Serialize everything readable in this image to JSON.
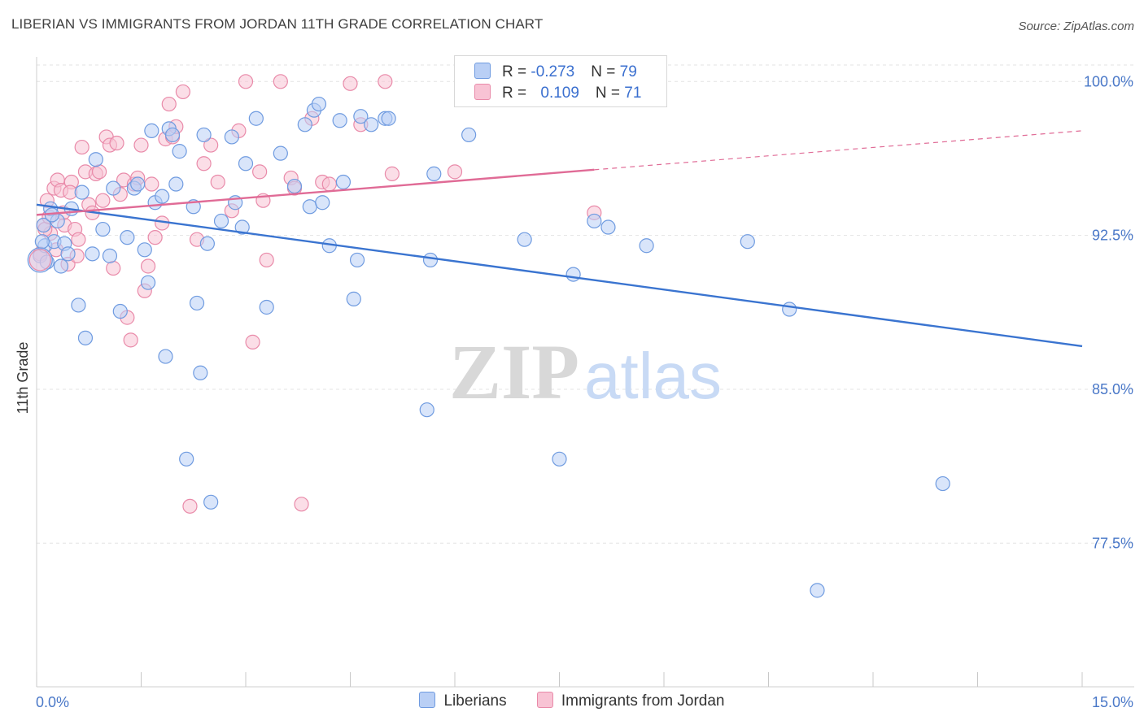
{
  "title": "LIBERIAN VS IMMIGRANTS FROM JORDAN 11TH GRADE CORRELATION CHART",
  "source": "Source: ZipAtlas.com",
  "watermark": {
    "zip": "ZIP",
    "atlas": "atlas"
  },
  "colors": {
    "blue_fill": "#b9cff5",
    "blue_stroke": "#6f9be0",
    "blue_line": "#3a74d0",
    "pink_fill": "#f8c3d4",
    "pink_stroke": "#e98aa9",
    "pink_line": "#e06b96",
    "tick_text": "#4a78c8",
    "grid": "#e3e3e3"
  },
  "legend": {
    "rows": [
      {
        "r_label": "R = ",
        "r_value": "-0.273",
        "n_label": "N = ",
        "n_value": "79"
      },
      {
        "r_label": "R = ",
        "r_value": "0.109",
        "n_label": "N = ",
        "n_value": "71"
      }
    ]
  },
  "chart_data": {
    "type": "scatter",
    "title": "LIBERIAN VS IMMIGRANTS FROM JORDAN 11TH GRADE CORRELATION CHART",
    "xlabel": "",
    "ylabel": "11th Grade",
    "xlim": [
      0,
      15
    ],
    "ylim": [
      70.5,
      101.2
    ],
    "x_tick_labels": [
      "0.0%",
      "15.0%"
    ],
    "y_ticks": [
      77.5,
      85.0,
      92.5,
      100.0
    ],
    "y_tick_labels": [
      "77.5%",
      "85.0%",
      "92.5%",
      "100.0%"
    ],
    "grid": true,
    "legend_position": "bottom",
    "series": [
      {
        "name": "Liberians",
        "color": "#6f9be0",
        "trend": {
          "x0": 0.0,
          "y0": 94.0,
          "x1": 15.0,
          "y1": 87.1,
          "dashed_to": null
        },
        "points": [
          [
            0.05,
            91.5
          ],
          [
            0.1,
            93.0
          ],
          [
            0.12,
            92.0
          ],
          [
            0.2,
            93.8
          ],
          [
            0.25,
            92.2
          ],
          [
            0.3,
            93.2
          ],
          [
            0.35,
            91.0
          ],
          [
            0.4,
            92.1
          ],
          [
            0.45,
            91.6
          ],
          [
            0.5,
            93.8
          ],
          [
            0.6,
            89.1
          ],
          [
            0.65,
            94.6
          ],
          [
            0.7,
            87.5
          ],
          [
            0.8,
            91.6
          ],
          [
            0.85,
            96.2
          ],
          [
            0.95,
            92.8
          ],
          [
            1.05,
            91.5
          ],
          [
            1.1,
            94.8
          ],
          [
            1.2,
            88.8
          ],
          [
            1.3,
            92.4
          ],
          [
            1.4,
            94.8
          ],
          [
            1.45,
            95.0
          ],
          [
            1.55,
            91.8
          ],
          [
            1.6,
            90.2
          ],
          [
            1.65,
            97.6
          ],
          [
            1.7,
            94.1
          ],
          [
            1.8,
            94.4
          ],
          [
            1.85,
            86.6
          ],
          [
            1.9,
            97.7
          ],
          [
            1.95,
            97.4
          ],
          [
            2.0,
            95.0
          ],
          [
            2.05,
            96.6
          ],
          [
            2.15,
            81.6
          ],
          [
            2.25,
            93.9
          ],
          [
            2.3,
            89.2
          ],
          [
            2.35,
            85.8
          ],
          [
            2.4,
            97.4
          ],
          [
            2.45,
            92.1
          ],
          [
            2.5,
            79.5
          ],
          [
            2.65,
            93.2
          ],
          [
            2.8,
            97.3
          ],
          [
            2.85,
            94.1
          ],
          [
            2.95,
            92.9
          ],
          [
            3.0,
            96.0
          ],
          [
            3.15,
            98.2
          ],
          [
            3.3,
            89.0
          ],
          [
            3.5,
            96.5
          ],
          [
            3.7,
            94.9
          ],
          [
            3.85,
            97.9
          ],
          [
            3.92,
            93.9
          ],
          [
            3.98,
            98.6
          ],
          [
            4.1,
            94.1
          ],
          [
            4.05,
            98.9
          ],
          [
            4.2,
            92.0
          ],
          [
            4.35,
            98.1
          ],
          [
            4.4,
            95.1
          ],
          [
            4.55,
            89.4
          ],
          [
            4.6,
            91.3
          ],
          [
            4.65,
            98.3
          ],
          [
            4.8,
            97.9
          ],
          [
            5.0,
            98.2
          ],
          [
            5.05,
            98.2
          ],
          [
            5.6,
            84.0
          ],
          [
            5.65,
            91.3
          ],
          [
            5.7,
            95.5
          ],
          [
            6.2,
            97.4
          ],
          [
            7.0,
            92.3
          ],
          [
            7.5,
            81.6
          ],
          [
            7.7,
            90.6
          ],
          [
            8.0,
            93.2
          ],
          [
            8.2,
            92.9
          ],
          [
            8.75,
            92.0
          ],
          [
            10.2,
            92.2
          ],
          [
            10.8,
            88.9
          ],
          [
            11.2,
            75.2
          ],
          [
            13.0,
            80.4
          ],
          [
            0.08,
            92.2
          ],
          [
            0.15,
            91.2
          ],
          [
            0.22,
            93.5
          ]
        ]
      },
      {
        "name": "Immigrants from Jordan",
        "color": "#e98aa9",
        "trend": {
          "x0": 0.0,
          "y0": 93.5,
          "x1": 8.0,
          "y1": 95.7,
          "dashed_to": {
            "x": 15.0,
            "y": 97.6
          }
        },
        "points": [
          [
            0.05,
            91.6
          ],
          [
            0.1,
            93.0
          ],
          [
            0.15,
            94.2
          ],
          [
            0.2,
            92.6
          ],
          [
            0.25,
            94.8
          ],
          [
            0.3,
            95.2
          ],
          [
            0.35,
            94.7
          ],
          [
            0.4,
            93.0
          ],
          [
            0.45,
            91.1
          ],
          [
            0.5,
            95.1
          ],
          [
            0.55,
            92.8
          ],
          [
            0.6,
            92.3
          ],
          [
            0.65,
            96.8
          ],
          [
            0.7,
            95.6
          ],
          [
            0.75,
            94.0
          ],
          [
            0.8,
            93.6
          ],
          [
            0.85,
            95.5
          ],
          [
            0.9,
            95.6
          ],
          [
            0.95,
            94.2
          ],
          [
            1.0,
            97.3
          ],
          [
            1.05,
            96.9
          ],
          [
            1.1,
            90.9
          ],
          [
            1.15,
            97.0
          ],
          [
            1.2,
            94.5
          ],
          [
            1.25,
            95.2
          ],
          [
            1.3,
            88.5
          ],
          [
            1.35,
            87.4
          ],
          [
            1.4,
            95.0
          ],
          [
            1.45,
            95.3
          ],
          [
            1.5,
            96.9
          ],
          [
            1.55,
            89.8
          ],
          [
            1.6,
            91.0
          ],
          [
            1.65,
            95.0
          ],
          [
            1.7,
            92.4
          ],
          [
            1.8,
            93.1
          ],
          [
            1.85,
            97.2
          ],
          [
            1.9,
            98.9
          ],
          [
            1.95,
            97.3
          ],
          [
            2.0,
            97.8
          ],
          [
            2.1,
            99.5
          ],
          [
            2.2,
            79.3
          ],
          [
            2.3,
            92.3
          ],
          [
            2.4,
            96.0
          ],
          [
            2.5,
            96.9
          ],
          [
            2.6,
            95.1
          ],
          [
            2.8,
            93.7
          ],
          [
            2.9,
            97.6
          ],
          [
            3.0,
            100.0
          ],
          [
            3.1,
            87.3
          ],
          [
            3.2,
            95.6
          ],
          [
            3.25,
            94.2
          ],
          [
            3.3,
            91.3
          ],
          [
            3.5,
            100.0
          ],
          [
            3.65,
            95.3
          ],
          [
            3.7,
            94.8
          ],
          [
            3.8,
            79.4
          ],
          [
            3.95,
            98.2
          ],
          [
            4.1,
            95.1
          ],
          [
            4.2,
            95.0
          ],
          [
            4.5,
            99.9
          ],
          [
            4.65,
            97.9
          ],
          [
            5.0,
            100.0
          ],
          [
            5.1,
            95.5
          ],
          [
            6.0,
            95.6
          ],
          [
            8.0,
            93.6
          ],
          [
            0.12,
            92.8
          ],
          [
            0.18,
            93.4
          ],
          [
            0.28,
            91.8
          ],
          [
            0.38,
            93.6
          ],
          [
            0.48,
            94.6
          ],
          [
            0.58,
            91.5
          ]
        ]
      }
    ]
  },
  "bottom_legend": [
    {
      "label": "Liberians"
    },
    {
      "label": "Immigrants from Jordan"
    }
  ]
}
